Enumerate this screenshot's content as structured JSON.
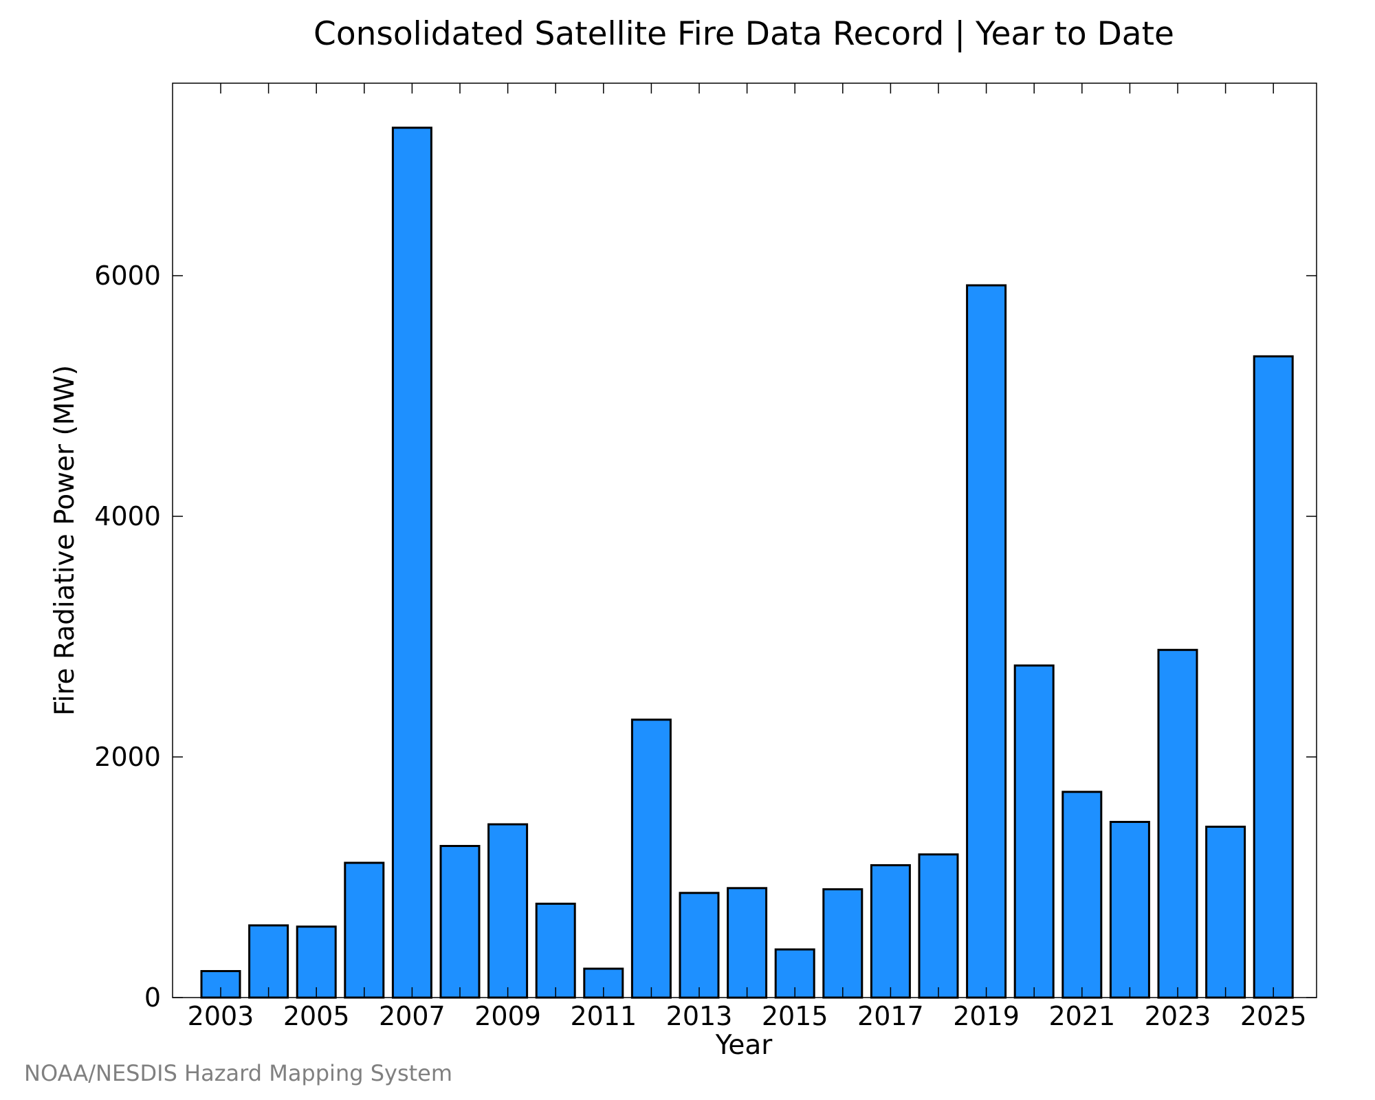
{
  "chart_data": {
    "type": "bar",
    "title": "Consolidated Satellite Fire Data Record | Year to Date",
    "xlabel": "Year",
    "ylabel": "Fire Radiative Power (MW)",
    "categories": [
      "2003",
      "2004",
      "2005",
      "2006",
      "2007",
      "2008",
      "2009",
      "2010",
      "2011",
      "2012",
      "2013",
      "2014",
      "2015",
      "2016",
      "2017",
      "2018",
      "2019",
      "2020",
      "2021",
      "2022",
      "2023",
      "2024",
      "2025"
    ],
    "values": [
      220,
      600,
      590,
      1120,
      7230,
      1260,
      1440,
      780,
      240,
      2310,
      870,
      910,
      400,
      900,
      1100,
      1190,
      5920,
      2760,
      1710,
      1460,
      2890,
      1420,
      5330
    ],
    "x_tick_labels": [
      "2003",
      "2005",
      "2007",
      "2009",
      "2011",
      "2013",
      "2015",
      "2017",
      "2019",
      "2021",
      "2023",
      "2025"
    ],
    "y_ticks": [
      0,
      2000,
      4000,
      6000
    ],
    "y_tick_labels": [
      "0",
      "2000",
      "4000",
      "6000"
    ],
    "ylim": [
      0,
      7600
    ],
    "grid": false,
    "bar_color": "#1e90ff",
    "bar_edge_color": "#000000"
  },
  "credit": "NOAA/NESDIS Hazard Mapping System"
}
